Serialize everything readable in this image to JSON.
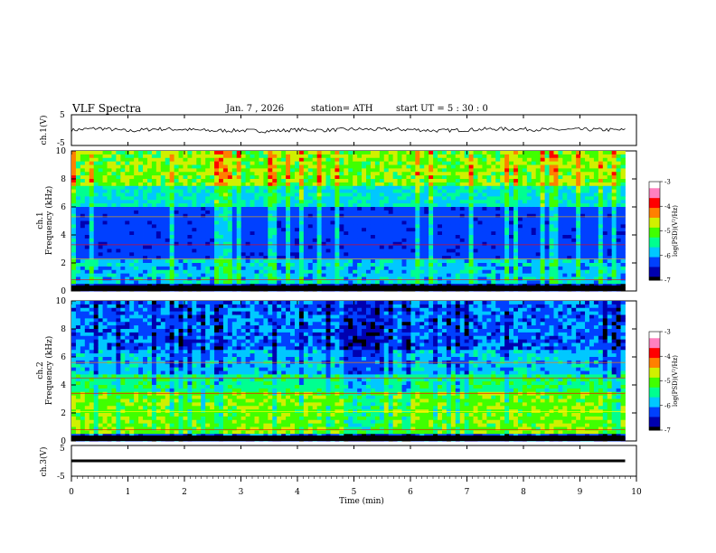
{
  "header": {
    "title": "VLF  Spectra",
    "date": "Jan. 7  , 2026",
    "station": "station= ATH",
    "start": "start  UT  =   5  : 30 : 0"
  },
  "colors": {
    "background": "#ffffff",
    "axis": "#000000",
    "trace": "#000000",
    "colormap": [
      "#000000",
      "#0000b0",
      "#0040ff",
      "#00c8ff",
      "#00ff90",
      "#40ff00",
      "#d0f000",
      "#ff8000",
      "#ff0000",
      "#ff80c0",
      "#ffffff"
    ]
  },
  "chart_data": [
    {
      "type": "line",
      "id": "ch1-waveform",
      "ylabel": "ch.1(V)",
      "ylim": [
        -5,
        5
      ],
      "yticks": [
        "5",
        "-5"
      ],
      "x": [
        0,
        0.5,
        1,
        1.5,
        2,
        2.5,
        3,
        3.5,
        4,
        4.5,
        5,
        5.5,
        6,
        6.5,
        7,
        7.5,
        8,
        8.5,
        9,
        9.5,
        9.8
      ],
      "values": [
        0,
        0.6,
        -0.3,
        0.4,
        0.2,
        -0.2,
        -0.1,
        -0.3,
        0.1,
        0,
        0.3,
        0.2,
        0.2,
        -0.2,
        0.1,
        0.4,
        0.3,
        0.1,
        0.2,
        0.1,
        0
      ]
    },
    {
      "type": "heatmap",
      "id": "ch1-spectrogram",
      "ylabel": "ch.1\nFrequency (kHz)",
      "ylim": [
        0,
        10
      ],
      "yticks": [
        "0",
        "2",
        "4",
        "6",
        "8",
        "10"
      ],
      "xlim": [
        0,
        9.8
      ],
      "colorbar": {
        "label": "log(PSD)(V²/Hz)",
        "range": [
          -7,
          -3
        ],
        "ticks": [
          "-3",
          "-4",
          "-5",
          "-6",
          "-7"
        ]
      }
    },
    {
      "type": "heatmap",
      "id": "ch2-spectrogram",
      "ylabel": "ch.2\nFrequency (kHz)",
      "ylim": [
        0,
        10
      ],
      "yticks": [
        "0",
        "2",
        "4",
        "6",
        "8",
        "10"
      ],
      "xlim": [
        0,
        9.8
      ],
      "colorbar": {
        "label": "log(PSD)(V²/Hz)",
        "range": [
          -7,
          -3
        ],
        "ticks": [
          "-3",
          "-4",
          "-5",
          "-6",
          "-7"
        ]
      }
    },
    {
      "type": "line",
      "id": "ch3-waveform",
      "ylabel": "ch.3(V)",
      "ylim": [
        -5,
        5
      ],
      "yticks": [
        "5",
        "-5"
      ],
      "x": [
        0,
        9.8
      ],
      "values": [
        0,
        0
      ]
    }
  ],
  "xaxis": {
    "label": "Time  (min)",
    "range": [
      0,
      10
    ],
    "ticks": [
      "0",
      "1",
      "2",
      "3",
      "4",
      "5",
      "6",
      "7",
      "8",
      "9",
      "10"
    ]
  }
}
